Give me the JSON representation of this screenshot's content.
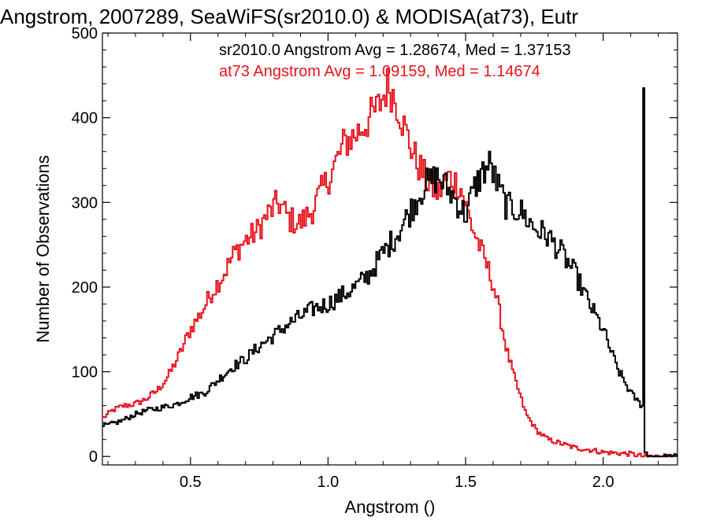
{
  "chart_data": {
    "type": "line",
    "title": "Angstrom, 2007289, SeaWiFS(sr2010.0) & MODISA(at73), Eutr",
    "xlabel": "Angstrom ()",
    "ylabel": "Number of Observations",
    "xlim": [
      0.18,
      2.27
    ],
    "ylim": [
      -10,
      500
    ],
    "xticks": [
      0.5,
      1.0,
      1.5,
      2.0
    ],
    "xtick_labels": [
      "0.5",
      "1.0",
      "1.5",
      "2.0"
    ],
    "yticks": [
      0,
      100,
      200,
      300,
      400,
      500
    ],
    "ytick_labels": [
      "0",
      "100",
      "200",
      "300",
      "400",
      "500"
    ],
    "grid": false,
    "step": true,
    "legend_placement": "top-right",
    "annotations": [
      {
        "text": "sr2010.0 Angstrom Avg = 1.28674, Med = 1.37153",
        "color": "#000000"
      },
      {
        "text": "at73 Angstrom Avg = 1.09159, Med = 1.14674",
        "color": "#e8121b"
      }
    ],
    "series": [
      {
        "color": "#000000",
        "x": [
          0.18,
          0.25,
          0.3,
          0.35,
          0.4,
          0.45,
          0.5,
          0.55,
          0.6,
          0.65,
          0.7,
          0.75,
          0.8,
          0.85,
          0.9,
          0.95,
          1.0,
          1.05,
          1.1,
          1.15,
          1.2,
          1.25,
          1.3,
          1.35,
          1.4,
          1.45,
          1.5,
          1.53,
          1.56,
          1.59,
          1.61,
          1.65,
          1.7,
          1.75,
          1.8,
          1.85,
          1.9,
          1.95,
          2.0,
          2.05,
          2.1,
          2.14,
          2.145,
          2.15,
          2.16,
          2.27
        ],
        "y": [
          35,
          42,
          50,
          55,
          58,
          62,
          70,
          75,
          90,
          105,
          115,
          130,
          142,
          155,
          165,
          175,
          180,
          190,
          200,
          215,
          240,
          262,
          290,
          320,
          330,
          310,
          285,
          315,
          335,
          345,
          325,
          295,
          290,
          270,
          260,
          240,
          215,
          180,
          150,
          105,
          75,
          60,
          435,
          5,
          0,
          0
        ]
      },
      {
        "color": "#e8121b",
        "x": [
          0.18,
          0.22,
          0.26,
          0.3,
          0.34,
          0.38,
          0.42,
          0.46,
          0.5,
          0.54,
          0.58,
          0.62,
          0.66,
          0.7,
          0.74,
          0.78,
          0.82,
          0.86,
          0.9,
          0.94,
          0.98,
          1.02,
          1.06,
          1.1,
          1.14,
          1.18,
          1.22,
          1.26,
          1.28,
          1.32,
          1.36,
          1.4,
          1.44,
          1.48,
          1.52,
          1.56,
          1.6,
          1.62,
          1.65,
          1.68,
          1.72,
          1.76,
          1.8,
          1.85,
          1.9,
          1.95,
          2.0,
          2.05,
          2.1,
          2.15,
          2.27
        ],
        "y": [
          45,
          55,
          60,
          62,
          68,
          78,
          95,
          120,
          150,
          170,
          195,
          215,
          240,
          255,
          265,
          285,
          300,
          280,
          275,
          290,
          315,
          340,
          370,
          380,
          395,
          410,
          440,
          410,
          385,
          350,
          325,
          310,
          330,
          320,
          275,
          240,
          205,
          175,
          125,
          90,
          50,
          30,
          20,
          15,
          10,
          8,
          5,
          4,
          3,
          0,
          0
        ]
      }
    ]
  }
}
